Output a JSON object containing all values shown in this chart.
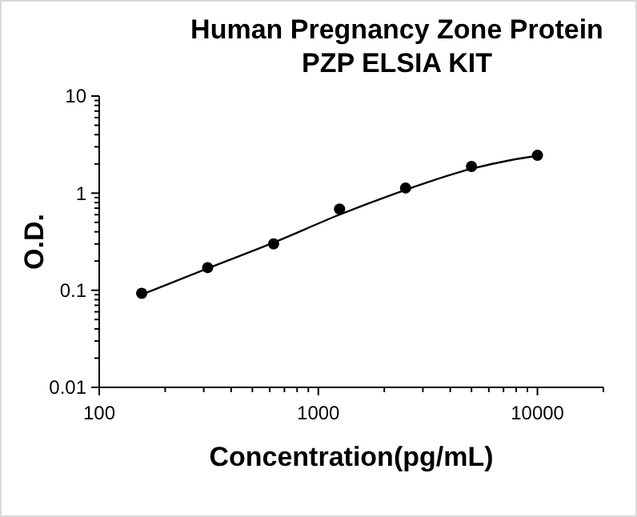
{
  "chart_data": {
    "type": "scatter",
    "title": "Human Pregnancy Zone Protein\nPZP ELSIA KIT",
    "xlabel": "Concentration(pg/mL)",
    "ylabel": "O.D.",
    "log": "xy",
    "grid": false,
    "xlim": [
      100,
      20000
    ],
    "xticks": [
      100,
      {
        "value": 200,
        "label": null
      },
      {
        "value": 300,
        "label": null
      },
      {
        "value": 400,
        "label": null
      },
      {
        "value": 500,
        "label": null
      },
      {
        "value": 600,
        "label": null
      },
      {
        "value": 700,
        "label": null
      },
      {
        "value": 800,
        "label": null
      },
      {
        "value": 900,
        "label": null
      },
      1000,
      {
        "value": 2000,
        "label": null
      },
      {
        "value": 3000,
        "label": null
      },
      {
        "value": 4000,
        "label": null
      },
      {
        "value": 5000,
        "label": null
      },
      {
        "value": 6000,
        "label": null
      },
      {
        "value": 7000,
        "label": null
      },
      {
        "value": 8000,
        "label": null
      },
      {
        "value": 9000,
        "label": null
      },
      10000,
      {
        "value": 20000,
        "label": null
      }
    ],
    "ylim": [
      0.01,
      10
    ],
    "yticks": [
      0.01,
      {
        "value": 0.02,
        "label": null
      },
      {
        "value": 0.03,
        "label": null
      },
      {
        "value": 0.04,
        "label": null
      },
      {
        "value": 0.05,
        "label": null
      },
      {
        "value": 0.06,
        "label": null
      },
      {
        "value": 0.07,
        "label": null
      },
      {
        "value": 0.08,
        "label": null
      },
      {
        "value": 0.09,
        "label": null
      },
      0.1,
      {
        "value": 0.2,
        "label": null
      },
      {
        "value": 0.3,
        "label": null
      },
      {
        "value": 0.4,
        "label": null
      },
      {
        "value": 0.5,
        "label": null
      },
      {
        "value": 0.6,
        "label": null
      },
      {
        "value": 0.7,
        "label": null
      },
      {
        "value": 0.8,
        "label": null
      },
      {
        "value": 0.9,
        "label": null
      },
      1,
      {
        "value": 2,
        "label": null
      },
      {
        "value": 3,
        "label": null
      },
      {
        "value": 4,
        "label": null
      },
      {
        "value": 5,
        "label": null
      },
      {
        "value": 6,
        "label": null
      },
      {
        "value": 7,
        "label": null
      },
      {
        "value": 8,
        "label": null
      },
      {
        "value": 9,
        "label": null
      },
      10
    ],
    "series": [
      {
        "color": "#000000",
        "marker": "circle",
        "x": [
          156.25,
          312.5,
          625,
          1250,
          2500,
          5000,
          10000
        ],
        "values": [
          0.093,
          0.171,
          0.3,
          0.685,
          1.13,
          1.88,
          2.45
        ]
      },
      {
        "type": "line",
        "color": "#000000",
        "line_style": "solid",
        "marker": "none",
        "x": [
          156.25,
          312.5,
          625,
          1250,
          2500,
          5000,
          7500,
          10000
        ],
        "values": [
          0.09,
          0.168,
          0.31,
          0.6,
          1.08,
          1.78,
          2.18,
          2.42
        ]
      }
    ]
  }
}
